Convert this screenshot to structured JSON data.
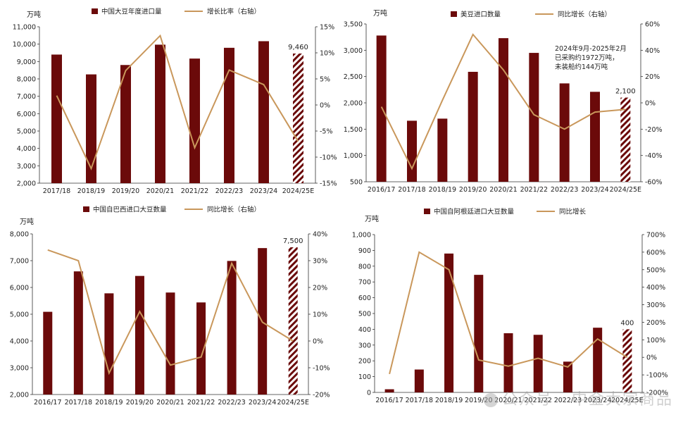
{
  "watermark": "公众号 · 中金大宗商品",
  "colors": {
    "bar": "#6b0a0a",
    "line": "#c9975b",
    "axis": "#333333"
  },
  "chart_data": [
    {
      "type": "bar",
      "categories": [
        "2017/18",
        "2018/19",
        "2019/20",
        "2020/21",
        "2021/22",
        "2022/23",
        "2023/24",
        "2024/25E"
      ],
      "y_unit": "万吨",
      "ylim": [
        2000,
        11000
      ],
      "yticks": [
        "2,000",
        "3,000",
        "4,000",
        "5,000",
        "6,000",
        "7,000",
        "8,000",
        "9,000",
        "10,000",
        "11,000"
      ],
      "y2lim": [
        -15,
        15
      ],
      "y2ticks": [
        "-15%",
        "-10%",
        "-5%",
        "0%",
        "5%",
        "10%",
        "15%"
      ],
      "series": [
        {
          "name": "中国大豆年度进口量",
          "kind": "bar",
          "values": [
            9400,
            8260,
            8800,
            9970,
            9170,
            9790,
            10170,
            9460
          ]
        },
        {
          "name": "增长比率（右轴）",
          "kind": "line",
          "axis": "right",
          "values": [
            1.8,
            -12.2,
            6.6,
            13.3,
            -8.2,
            6.7,
            3.9,
            -7.0
          ]
        }
      ],
      "forecast_index": 7,
      "data_labels": [
        {
          "index": 7,
          "text": "9,460"
        }
      ]
    },
    {
      "type": "bar",
      "categories": [
        "2016/17",
        "2017/18",
        "2018/19",
        "2019/20",
        "2020/21",
        "2021/22",
        "2022/23",
        "2023/24",
        "2024/25E"
      ],
      "y_unit": "万吨",
      "ylim": [
        500,
        3500
      ],
      "yticks": [
        "500",
        "1,000",
        "1,500",
        "2,000",
        "2,500",
        "3,000",
        "3,500"
      ],
      "y2lim": [
        -60,
        60
      ],
      "y2ticks": [
        "-60%",
        "-40%",
        "-20%",
        "0%",
        "20%",
        "40%",
        "60%"
      ],
      "series": [
        {
          "name": "美豆进口数量",
          "kind": "bar",
          "values": [
            3280,
            1660,
            1700,
            2590,
            3230,
            2950,
            2370,
            2210,
            2100
          ]
        },
        {
          "name": "同比增长（右轴）",
          "kind": "line",
          "axis": "right",
          "values": [
            -3,
            -50,
            2,
            52,
            25,
            -9,
            -20,
            -7,
            -5
          ]
        }
      ],
      "forecast_index": 8,
      "data_labels": [
        {
          "index": 8,
          "text": "2,100"
        }
      ],
      "annotation": [
        "2024年9月-2025年2月",
        "已采购约1972万吨，",
        "未装船约144万吨"
      ]
    },
    {
      "type": "bar",
      "categories": [
        "2016/17",
        "2017/18",
        "2018/19",
        "2019/20",
        "2020/21",
        "2021/22",
        "2022/23",
        "2023/24",
        "2024/25E"
      ],
      "y_unit": "万吨",
      "ylim": [
        2000,
        8000
      ],
      "yticks": [
        "2,000",
        "3,000",
        "4,000",
        "5,000",
        "6,000",
        "7,000",
        "8,000"
      ],
      "y2lim": [
        -20,
        40
      ],
      "y2ticks": [
        "-20%",
        "-10%",
        "0%",
        "10%",
        "20%",
        "30%",
        "40%"
      ],
      "series": [
        {
          "name": "中国自巴西进口大豆数量",
          "kind": "bar",
          "values": [
            5090,
            6600,
            5780,
            6430,
            5810,
            5440,
            6990,
            7470,
            7500
          ]
        },
        {
          "name": "同比增长（右轴）",
          "kind": "line",
          "axis": "right",
          "values": [
            34,
            30,
            -12,
            11,
            -9,
            -6,
            29,
            7,
            0
          ]
        }
      ],
      "forecast_index": 8,
      "data_labels": [
        {
          "index": 8,
          "text": "7,500"
        }
      ]
    },
    {
      "type": "bar",
      "categories": [
        "2016/17",
        "2017/18",
        "2018/19",
        "2019/20",
        "2020/21",
        "2021/22",
        "2022/23",
        "2023/24",
        "2024/25E"
      ],
      "y_unit": "万吨",
      "ylim": [
        0,
        1000
      ],
      "yticks": [
        "0",
        "100",
        "200",
        "300",
        "400",
        "500",
        "600",
        "700",
        "800",
        "900",
        "1,000"
      ],
      "y2lim": [
        -200,
        700
      ],
      "y2ticks": [
        "-200%",
        "-100%",
        "0%",
        "100%",
        "200%",
        "300%",
        "400%",
        "500%",
        "600%",
        "700%"
      ],
      "series": [
        {
          "name": "中国自阿根廷进口大豆数量",
          "kind": "bar",
          "values": [
            20,
            145,
            880,
            745,
            375,
            365,
            195,
            410,
            400
          ]
        },
        {
          "name": "同比增长",
          "kind": "line",
          "axis": "right",
          "values": [
            -95,
            600,
            500,
            -15,
            -50,
            -5,
            -55,
            105,
            0
          ]
        }
      ],
      "forecast_index": 8,
      "data_labels": [
        {
          "index": 8,
          "text": "400"
        }
      ]
    }
  ]
}
